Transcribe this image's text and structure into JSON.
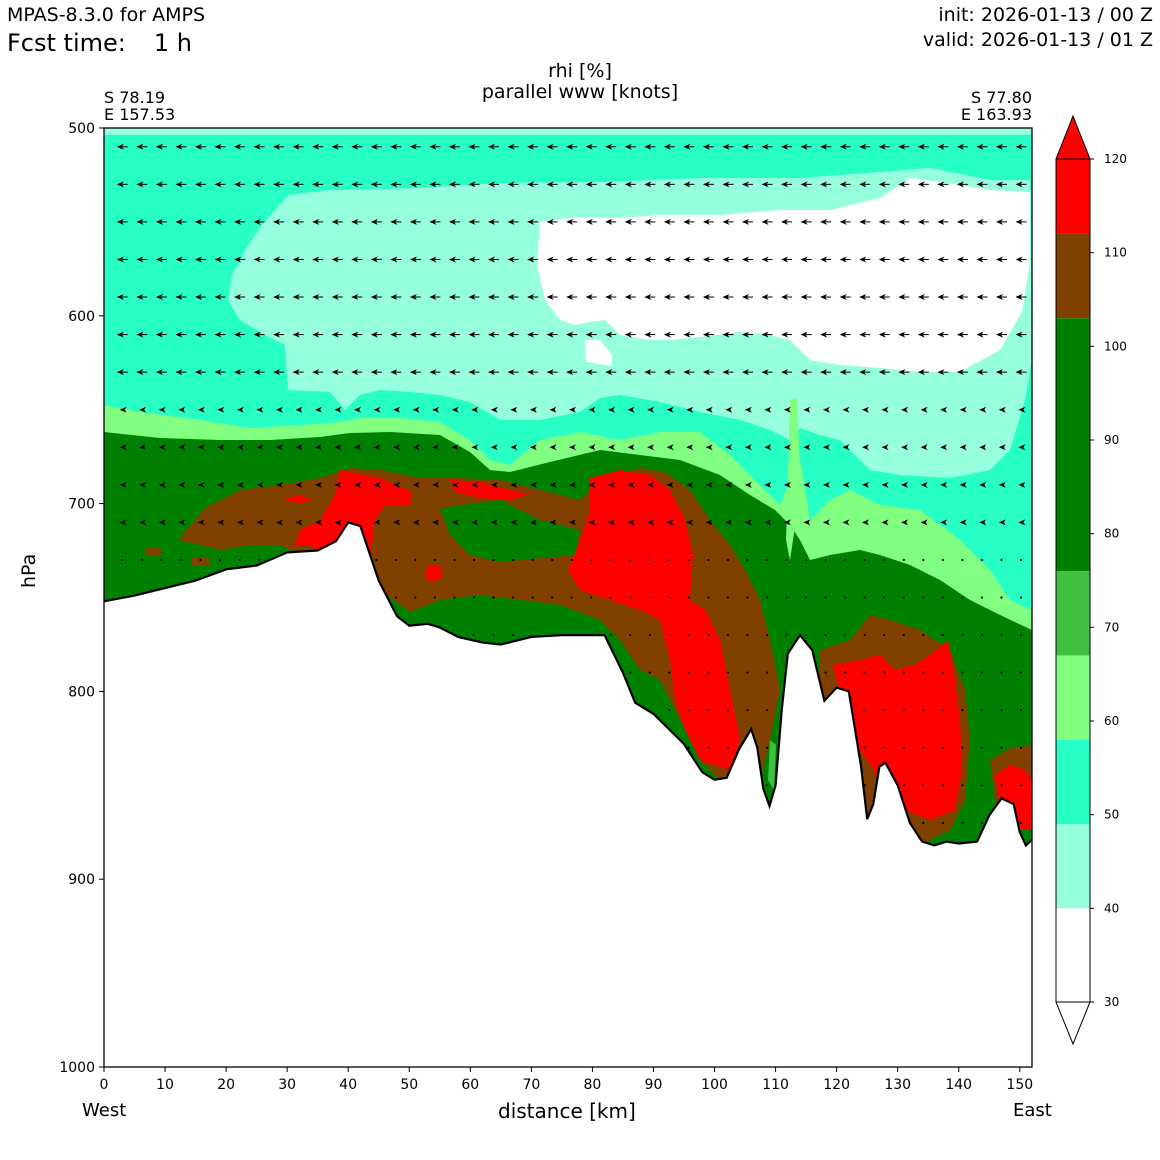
{
  "header": {
    "model": "MPAS-8.3.0 for AMPS",
    "fcst_label": "Fcst time:",
    "fcst_value": "1 h",
    "init": "init: 2026-01-13 / 00 Z",
    "valid": "valid: 2026-01-13 / 01 Z"
  },
  "chart_data": {
    "type": "cross-section contour (filled) with wind vectors",
    "title_line1": "rhi [%]",
    "title_line2": "parallel www [knots]",
    "xlabel": "distance [km]",
    "ylabel": "hPa",
    "left_end_label": "West",
    "right_end_label": "East",
    "left_point": {
      "lat": "S 78.19",
      "lon": "E 157.53"
    },
    "right_point": {
      "lat": "S 77.80",
      "lon": "E 163.93"
    },
    "xlim": [
      0,
      152
    ],
    "ylim_hpa": [
      1000,
      500
    ],
    "x_ticks": [
      "0",
      "10",
      "20",
      "30",
      "40",
      "50",
      "60",
      "70",
      "80",
      "90",
      "100",
      "110",
      "120",
      "130",
      "140",
      "150"
    ],
    "y_ticks": [
      "500",
      "600",
      "700",
      "800",
      "900",
      "1000"
    ],
    "colorbar": {
      "levels": [
        30,
        40,
        50,
        60,
        70,
        80,
        90,
        100,
        110,
        120
      ],
      "tick_labels": [
        "30",
        "40",
        "50",
        "60",
        "70",
        "80",
        "90",
        "100",
        "110",
        "120"
      ],
      "colors": [
        "#ffffff",
        "#96ffde",
        "#28ffc4",
        "#80ff80",
        "#40c040",
        "#008000",
        "#008000",
        "#804000",
        "#ff0000"
      ],
      "color_ranges": [
        [
          30,
          40
        ],
        [
          40,
          49
        ],
        [
          49,
          58
        ],
        [
          58,
          67
        ],
        [
          67,
          76
        ],
        [
          76,
          90
        ],
        [
          90,
          103
        ],
        [
          103,
          112
        ],
        [
          112,
          125
        ]
      ],
      "extend": "both"
    },
    "terrain_hpa": [
      [
        0,
        752
      ],
      [
        5,
        749
      ],
      [
        10,
        745
      ],
      [
        15,
        741
      ],
      [
        20,
        735
      ],
      [
        25,
        733
      ],
      [
        30,
        726
      ],
      [
        35,
        725
      ],
      [
        38,
        720
      ],
      [
        40,
        710
      ],
      [
        42,
        712
      ],
      [
        45,
        741
      ],
      [
        48,
        760
      ],
      [
        50,
        765
      ],
      [
        53,
        764
      ],
      [
        55,
        766
      ],
      [
        58,
        771
      ],
      [
        62,
        774
      ],
      [
        65,
        775
      ],
      [
        70,
        771
      ],
      [
        75,
        770
      ],
      [
        80,
        770
      ],
      [
        82,
        770
      ],
      [
        85,
        790
      ],
      [
        87,
        806
      ],
      [
        90,
        812
      ],
      [
        95,
        828
      ],
      [
        98,
        843
      ],
      [
        100,
        847
      ],
      [
        102,
        846
      ],
      [
        104,
        831
      ],
      [
        106,
        820
      ],
      [
        107,
        830
      ],
      [
        108,
        852
      ],
      [
        109,
        861
      ],
      [
        110,
        850
      ],
      [
        111,
        810
      ],
      [
        112,
        780
      ],
      [
        114,
        770
      ],
      [
        116,
        778
      ],
      [
        118,
        805
      ],
      [
        120,
        798
      ],
      [
        122,
        800
      ],
      [
        124,
        840
      ],
      [
        125,
        868
      ],
      [
        126,
        860
      ],
      [
        127,
        840
      ],
      [
        128,
        838
      ],
      [
        130,
        850
      ],
      [
        132,
        870
      ],
      [
        134,
        880
      ],
      [
        136,
        882
      ],
      [
        138,
        880
      ],
      [
        140,
        881
      ],
      [
        143,
        880
      ],
      [
        145,
        866
      ],
      [
        147,
        857
      ],
      [
        149,
        860
      ],
      [
        150,
        875
      ],
      [
        151,
        882
      ],
      [
        152,
        879
      ]
    ],
    "wind_arrow_levels_hpa": [
      510,
      530,
      550,
      570,
      590,
      610,
      630,
      650,
      670,
      690,
      710,
      730,
      750,
      770,
      790,
      810,
      830,
      850,
      870
    ],
    "wind_arrow_spacing_km": 3.2,
    "wind_direction_note": "mostly westward (pointing left) at all levels; near-calm dots in lower levels"
  }
}
